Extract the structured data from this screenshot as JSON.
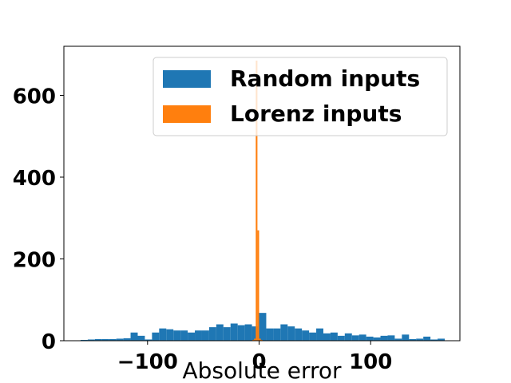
{
  "chart_data": {
    "type": "bar",
    "xlabel": "Absolute error",
    "ylabel": "",
    "xlim": [
      -175,
      180
    ],
    "ylim": [
      0,
      720
    ],
    "xticks": [
      -100,
      0,
      100
    ],
    "xtick_labels": [
      "−100",
      "0",
      "100"
    ],
    "yticks": [
      0,
      200,
      400,
      600
    ],
    "ytick_labels": [
      "0",
      "200",
      "400",
      "600"
    ],
    "legend_placement": "top-right",
    "grid": false,
    "series": [
      {
        "name": "Random inputs",
        "color": "#1f77b4",
        "bin_start": -160,
        "bin_width": 6.4,
        "values": [
          2,
          3,
          4,
          4,
          4,
          5,
          6,
          20,
          12,
          3,
          20,
          30,
          28,
          25,
          25,
          20,
          25,
          25,
          33,
          40,
          33,
          42,
          38,
          40,
          35,
          68,
          30,
          30,
          40,
          35,
          30,
          25,
          20,
          30,
          18,
          20,
          12,
          18,
          13,
          15,
          10,
          8,
          12,
          13,
          5,
          15,
          4,
          5,
          10,
          3,
          5
        ]
      },
      {
        "name": "Lorenz inputs",
        "color": "#ff7f0e",
        "bin_start": -6,
        "bin_width": 1.5,
        "values": [
          2,
          5,
          685,
          270,
          5,
          2
        ]
      }
    ]
  }
}
